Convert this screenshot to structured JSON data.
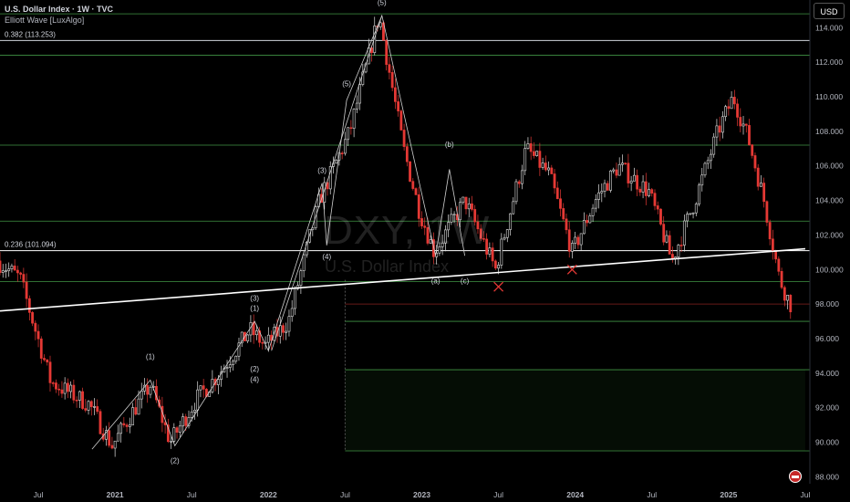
{
  "header": {
    "title": "U.S. Dollar Index · 1W · TVC",
    "indicator": "Elliott Wave [LuxAlgo]",
    "currency": "USD"
  },
  "watermark": {
    "symbol": "DXY, 1W",
    "name": "U.S. Dollar Index"
  },
  "colors": {
    "up": "#e0e0e0",
    "down": "#e53935",
    "fib_line": "#4caf50",
    "trendline": "#ffffff",
    "axis_text": "#b2b5be"
  },
  "chart_data": {
    "type": "candlestick",
    "xlim": [
      "2020-05",
      "2025-07"
    ],
    "ylim": [
      87.6,
      115.6
    ],
    "y_ticks": [
      "114.000",
      "112.000",
      "110.000",
      "108.000",
      "106.000",
      "104.000",
      "102.000",
      "100.000",
      "98.000",
      "96.000",
      "94.000",
      "92.000",
      "90.000",
      "88.000"
    ],
    "x_ticks": [
      {
        "t": 2020.5,
        "label": "Jul"
      },
      {
        "t": 2021.0,
        "label": "2021"
      },
      {
        "t": 2021.5,
        "label": "Jul"
      },
      {
        "t": 2022.0,
        "label": "2022"
      },
      {
        "t": 2022.5,
        "label": "Jul"
      },
      {
        "t": 2023.0,
        "label": "2023"
      },
      {
        "t": 2023.5,
        "label": "Jul"
      },
      {
        "t": 2024.0,
        "label": "2024"
      },
      {
        "t": 2024.5,
        "label": "Jul"
      },
      {
        "t": 2025.0,
        "label": "2025"
      },
      {
        "t": 2025.5,
        "label": "Jul"
      }
    ],
    "price_path": [
      [
        2020.25,
        100.5
      ],
      [
        2020.4,
        99.5
      ],
      [
        2020.6,
        93.5
      ],
      [
        2020.85,
        92.2
      ],
      [
        2021.0,
        89.8
      ],
      [
        2021.15,
        92.0
      ],
      [
        2021.25,
        93.3
      ],
      [
        2021.38,
        90.0
      ],
      [
        2021.55,
        92.5
      ],
      [
        2021.7,
        94.0
      ],
      [
        2021.9,
        96.5
      ],
      [
        2022.0,
        95.6
      ],
      [
        2022.15,
        97.0
      ],
      [
        2022.35,
        104.0
      ],
      [
        2022.55,
        108.0
      ],
      [
        2022.74,
        114.7
      ],
      [
        2022.9,
        107.0
      ],
      [
        2023.0,
        103.5
      ],
      [
        2023.1,
        101.0
      ],
      [
        2023.3,
        104.0
      ],
      [
        2023.5,
        100.0
      ],
      [
        2023.7,
        107.0
      ],
      [
        2023.85,
        105.5
      ],
      [
        2024.0,
        101.0
      ],
      [
        2024.15,
        104.0
      ],
      [
        2024.3,
        106.0
      ],
      [
        2024.5,
        104.5
      ],
      [
        2024.65,
        100.5
      ],
      [
        2024.8,
        104.0
      ],
      [
        2024.95,
        108.0
      ],
      [
        2025.05,
        110.0
      ],
      [
        2025.15,
        107.5
      ],
      [
        2025.25,
        104.0
      ],
      [
        2025.35,
        99.5
      ],
      [
        2025.42,
        98.0
      ]
    ],
    "fib_levels": [
      {
        "label": "0.382 (113.253)",
        "value": 113.253
      },
      {
        "label": "0.236 (101.094)",
        "value": 101.094
      }
    ],
    "horizontal_levels": [
      114.8,
      112.4,
      107.2,
      102.8,
      99.3,
      97.0,
      94.2,
      89.5
    ],
    "trendline": [
      [
        2020.25,
        97.6
      ],
      [
        2025.5,
        101.2
      ]
    ],
    "elliott_labels": [
      {
        "text": "(5)",
        "t": 2022.74,
        "v": 115.3
      },
      {
        "text": "(5)",
        "t": 2022.51,
        "v": 110.6
      },
      {
        "text": "(3)",
        "t": 2022.35,
        "v": 105.6
      },
      {
        "text": "(4)",
        "t": 2022.38,
        "v": 100.6
      },
      {
        "text": "(3)",
        "t": 2021.91,
        "v": 98.2
      },
      {
        "text": "(1)",
        "t": 2021.91,
        "v": 97.6
      },
      {
        "text": "(2)",
        "t": 2021.91,
        "v": 94.1
      },
      {
        "text": "(4)",
        "t": 2021.91,
        "v": 93.5
      },
      {
        "text": "(1)",
        "t": 2021.23,
        "v": 94.8
      },
      {
        "text": "(2)",
        "t": 2021.39,
        "v": 88.8
      },
      {
        "text": "(b)",
        "t": 2023.18,
        "v": 107.1
      },
      {
        "text": "(a)",
        "t": 2023.09,
        "v": 99.2
      },
      {
        "text": "(c)",
        "t": 2023.28,
        "v": 99.2
      }
    ],
    "cross_marks": [
      [
        2023.5,
        99.0
      ],
      [
        2023.98,
        100.0
      ]
    ]
  }
}
